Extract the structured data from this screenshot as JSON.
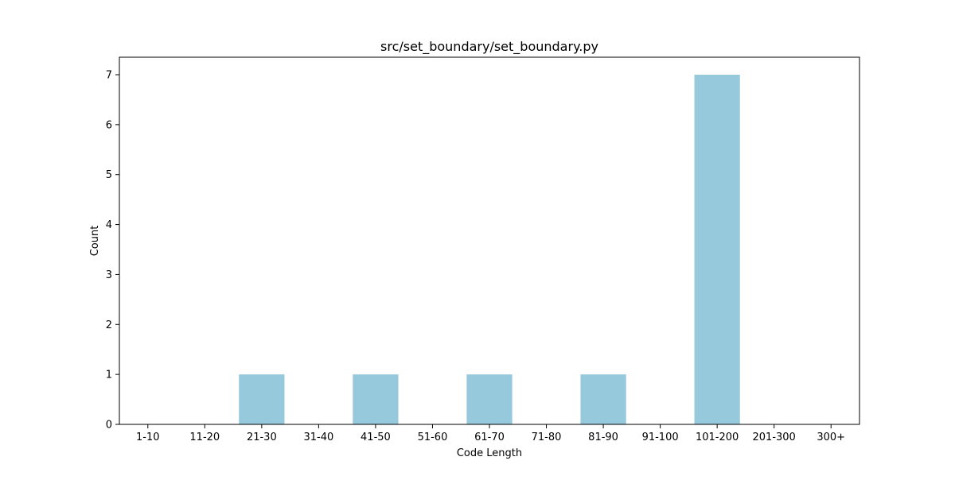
{
  "chart_data": {
    "type": "bar",
    "title": "src/set_boundary/set_boundary.py",
    "xlabel": "Code Length",
    "ylabel": "Count",
    "categories": [
      "1-10",
      "11-20",
      "21-30",
      "31-40",
      "41-50",
      "51-60",
      "61-70",
      "71-80",
      "81-90",
      "91-100",
      "101-200",
      "201-300",
      "300+"
    ],
    "values": [
      0,
      0,
      1,
      0,
      1,
      0,
      1,
      0,
      1,
      0,
      7,
      0,
      0
    ],
    "ylim": [
      0,
      7.35
    ],
    "yticks": [
      0,
      1,
      2,
      3,
      4,
      5,
      6,
      7
    ],
    "grid": false,
    "legend": "none",
    "bar_color": "#96c9dc"
  }
}
